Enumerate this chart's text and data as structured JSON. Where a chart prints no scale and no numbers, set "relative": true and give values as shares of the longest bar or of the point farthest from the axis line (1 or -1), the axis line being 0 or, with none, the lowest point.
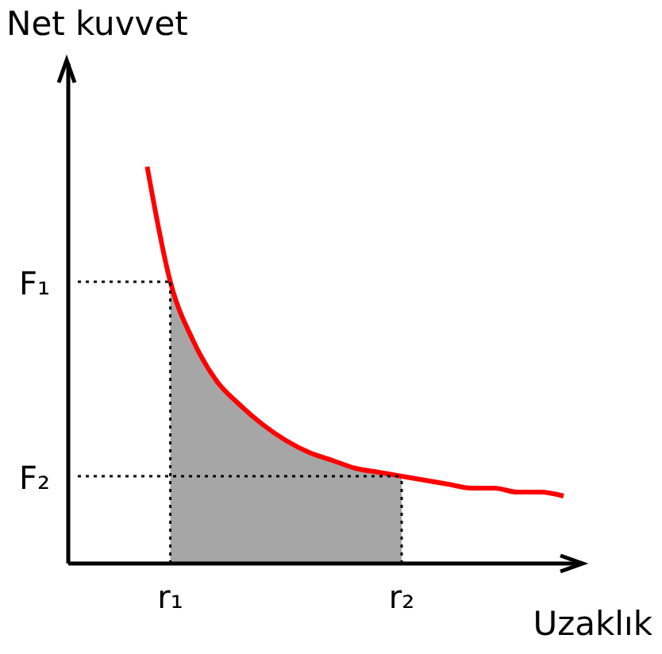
{
  "chart_data": {
    "type": "line",
    "relative": true,
    "xlabel": "Uzaklık",
    "ylabel": "Net kuvvet",
    "marker": "none",
    "categories": [
      null,
      null,
      null,
      null,
      "r₁",
      null,
      null,
      null,
      null,
      null,
      null,
      null,
      null,
      null,
      "r₂",
      null,
      null,
      null,
      null,
      null,
      null,
      null
    ],
    "series": [
      {
        "type": "area",
        "color": "#a6a6a6",
        "values": [
          null,
          null,
          null,
          null,
          0.71,
          0.56,
          0.46,
          0.4,
          0.35,
          0.31,
          0.28,
          0.26,
          0.24,
          0.23,
          0.22,
          null,
          null,
          null,
          null,
          null,
          null,
          null
        ]
      },
      {
        "color": "#ff0000",
        "values": [
          null,
          null,
          null,
          1,
          0.71,
          0.56,
          0.46,
          0.4,
          0.35,
          0.31,
          0.28,
          0.26,
          0.24,
          0.23,
          0.22,
          0.21,
          0.2,
          0.19,
          0.19,
          0.18,
          0.18,
          0.17
        ]
      }
    ],
    "ref_lines": [
      {
        "axis": "y",
        "value": 0.71,
        "label": "F₁",
        "line_style": "dotted",
        "color": "#000000"
      },
      {
        "axis": "y",
        "value": 0.22,
        "label": "F₂",
        "line_style": "dotted",
        "color": "#000000"
      },
      {
        "axis": "x",
        "value": "r₁",
        "line_style": "dotted",
        "color": "#000000"
      },
      {
        "axis": "x",
        "value": "r₂",
        "line_style": "dotted",
        "color": "#000000"
      }
    ]
  }
}
